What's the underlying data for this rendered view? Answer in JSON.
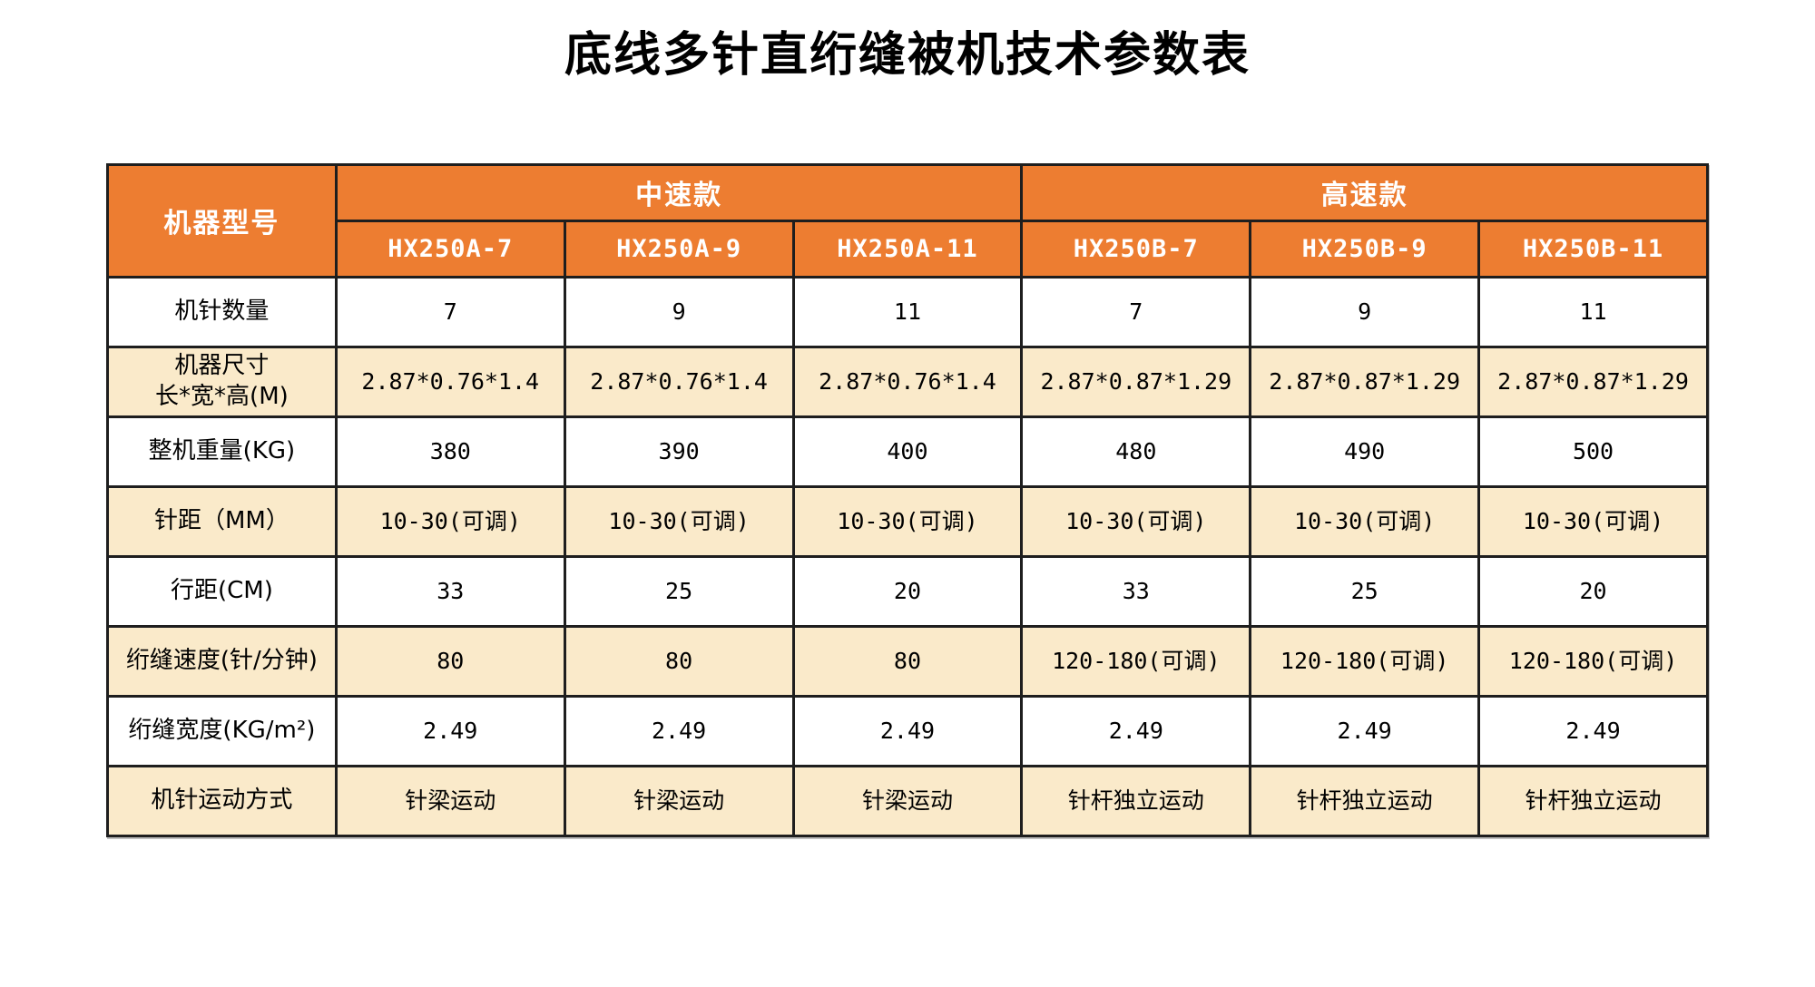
{
  "title": "底线多针直绗缝被机技术参数表",
  "colors": {
    "header_bg": "#ED7D31",
    "header_text": "#FFFFFF",
    "band_row_bg": "#FAEACA",
    "plain_row_bg": "#FFFFFF",
    "border": "#1E1E1E",
    "body_text": "#000000"
  },
  "table": {
    "corner_label": "机器型号",
    "groups": [
      {
        "label": "中速款",
        "models": [
          "HX250A-7",
          "HX250A-9",
          "HX250A-11"
        ]
      },
      {
        "label": "高速款",
        "models": [
          "HX250B-7",
          "HX250B-9",
          "HX250B-11"
        ]
      }
    ],
    "rows": [
      {
        "label": "机针数量",
        "values": [
          "7",
          "9",
          "11",
          "7",
          "9",
          "11"
        ]
      },
      {
        "label": "机器尺寸\n长*宽*高(M)",
        "values": [
          "2.87*0.76*1.4",
          "2.87*0.76*1.4",
          "2.87*0.76*1.4",
          "2.87*0.87*1.29",
          "2.87*0.87*1.29",
          "2.87*0.87*1.29"
        ]
      },
      {
        "label": "整机重量(KG)",
        "values": [
          "380",
          "390",
          "400",
          "480",
          "490",
          "500"
        ]
      },
      {
        "label": "针距（MM）",
        "values": [
          "10-30(可调)",
          "10-30(可调)",
          "10-30(可调)",
          "10-30(可调)",
          "10-30(可调)",
          "10-30(可调)"
        ]
      },
      {
        "label": "行距(CM)",
        "values": [
          "33",
          "25",
          "20",
          "33",
          "25",
          "20"
        ]
      },
      {
        "label": "绗缝速度(针/分钟)",
        "values": [
          "80",
          "80",
          "80",
          "120-180(可调)",
          "120-180(可调)",
          "120-180(可调)"
        ]
      },
      {
        "label": "绗缝宽度(KG/m²)",
        "values": [
          "2.49",
          "2.49",
          "2.49",
          "2.49",
          "2.49",
          "2.49"
        ]
      },
      {
        "label": "机针运动方式",
        "values": [
          "针梁运动",
          "针梁运动",
          "针梁运动",
          "针杆独立运动",
          "针杆独立运动",
          "针杆独立运动"
        ]
      }
    ]
  }
}
